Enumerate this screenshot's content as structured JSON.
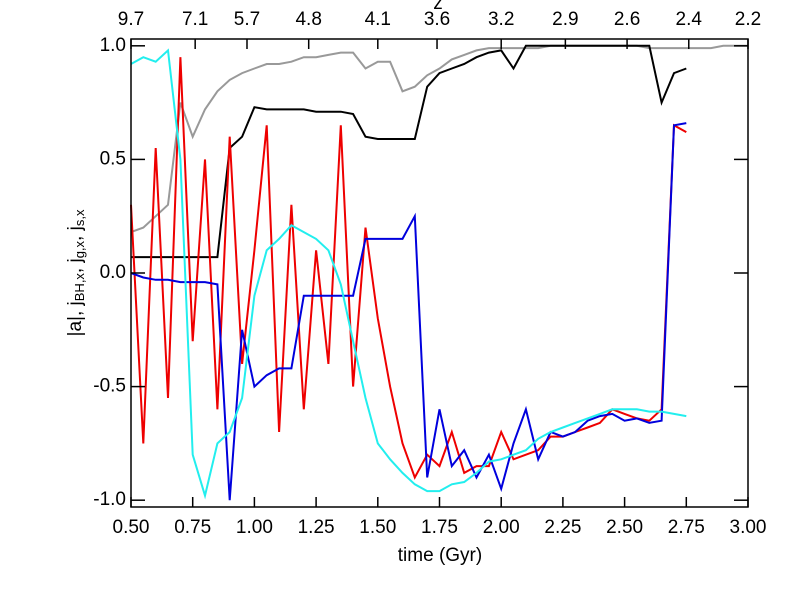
{
  "chart_data": {
    "type": "line",
    "xlabel": "time (Gyr)",
    "ylabel": [
      "|a|, j",
      "BH,x",
      ", j",
      "g,x",
      ", j",
      "s,x"
    ],
    "top_axis": {
      "label": "z",
      "ticks": [
        {
          "value": 0.5,
          "label": "9.7"
        },
        {
          "value": 0.76,
          "label": "7.1"
        },
        {
          "value": 0.97,
          "label": "5.7"
        },
        {
          "value": 1.22,
          "label": "4.8"
        },
        {
          "value": 1.5,
          "label": "4.1"
        },
        {
          "value": 1.74,
          "label": "3.6"
        },
        {
          "value": 2.0,
          "label": "3.2"
        },
        {
          "value": 2.26,
          "label": "2.9"
        },
        {
          "value": 2.51,
          "label": "2.6"
        },
        {
          "value": 2.76,
          "label": "2.4"
        },
        {
          "value": 3.0,
          "label": "2.2"
        }
      ]
    },
    "xlim": [
      0.5,
      3.0
    ],
    "ylim": [
      -1.03,
      1.03
    ],
    "xticks": [
      {
        "value": 0.5,
        "label": "0.50"
      },
      {
        "value": 0.75,
        "label": "0.75"
      },
      {
        "value": 1.0,
        "label": "1.00"
      },
      {
        "value": 1.25,
        "label": "1.25"
      },
      {
        "value": 1.5,
        "label": "1.50"
      },
      {
        "value": 1.75,
        "label": "1.75"
      },
      {
        "value": 2.0,
        "label": "2.00"
      },
      {
        "value": 2.25,
        "label": "2.25"
      },
      {
        "value": 2.5,
        "label": "2.50"
      },
      {
        "value": 2.75,
        "label": "2.75"
      },
      {
        "value": 3.0,
        "label": "3.00"
      }
    ],
    "yticks": [
      {
        "value": -1.0,
        "label": "-1.0"
      },
      {
        "value": -0.5,
        "label": "-0.5"
      },
      {
        "value": 0.0,
        "label": "0.0"
      },
      {
        "value": 0.5,
        "label": "0.5"
      },
      {
        "value": 1.0,
        "label": "1.0"
      }
    ],
    "x": [
      0.5,
      0.55,
      0.6,
      0.65,
      0.7,
      0.75,
      0.8,
      0.85,
      0.9,
      0.95,
      1.0,
      1.05,
      1.1,
      1.15,
      1.2,
      1.25,
      1.3,
      1.35,
      1.4,
      1.45,
      1.5,
      1.55,
      1.6,
      1.65,
      1.7,
      1.75,
      1.8,
      1.85,
      1.9,
      1.95,
      2.0,
      2.05,
      2.1,
      2.15,
      2.2,
      2.25,
      2.3,
      2.35,
      2.4,
      2.45,
      2.5,
      2.55,
      2.6,
      2.65,
      2.7,
      2.75,
      2.8,
      2.85,
      2.9,
      2.95,
      3.0
    ],
    "series": [
      {
        "color": "#999999",
        "values": [
          0.18,
          0.2,
          0.25,
          0.3,
          0.75,
          0.6,
          0.72,
          0.8,
          0.85,
          0.88,
          0.9,
          0.92,
          0.92,
          0.93,
          0.95,
          0.95,
          0.96,
          0.97,
          0.97,
          0.9,
          0.93,
          0.93,
          0.8,
          0.82,
          0.87,
          0.9,
          0.94,
          0.96,
          0.98,
          0.99,
          0.99,
          0.99,
          0.99,
          0.99,
          1.0,
          1.0,
          1.0,
          1.0,
          1.0,
          1.0,
          1.0,
          1.0,
          0.99,
          0.99,
          0.99,
          0.99,
          0.99,
          0.99,
          1.0,
          1.0,
          1.0
        ]
      },
      {
        "color": "#000000",
        "values": [
          0.07,
          0.07,
          0.07,
          0.07,
          0.07,
          0.07,
          0.07,
          0.07,
          0.55,
          0.6,
          0.73,
          0.72,
          0.72,
          0.72,
          0.72,
          0.71,
          0.71,
          0.71,
          0.7,
          0.6,
          0.59,
          0.59,
          0.59,
          0.59,
          0.82,
          0.88,
          0.9,
          0.92,
          0.95,
          0.97,
          0.98,
          0.9,
          1.0,
          1.0,
          1.0,
          1.0,
          1.0,
          1.0,
          1.0,
          1.0,
          1.0,
          1.0,
          1.0,
          0.75,
          0.88,
          0.9,
          null,
          null,
          null,
          null,
          null
        ]
      },
      {
        "color": "#ee0000",
        "values": [
          0.3,
          -0.75,
          0.55,
          -0.55,
          0.95,
          -0.3,
          0.5,
          -0.6,
          0.6,
          -0.4,
          0.1,
          0.65,
          -0.7,
          0.3,
          -0.6,
          0.1,
          -0.4,
          0.65,
          -0.5,
          0.2,
          -0.2,
          -0.5,
          -0.75,
          -0.9,
          -0.8,
          -0.85,
          -0.7,
          -0.88,
          -0.85,
          -0.85,
          -0.7,
          -0.82,
          -0.8,
          -0.78,
          -0.72,
          -0.72,
          -0.7,
          -0.68,
          -0.66,
          -0.6,
          -0.62,
          -0.64,
          -0.65,
          -0.6,
          0.65,
          0.62,
          null,
          null,
          null,
          null,
          null
        ]
      },
      {
        "color": "#0000dd",
        "values": [
          0.0,
          -0.02,
          -0.03,
          -0.03,
          -0.04,
          -0.04,
          -0.04,
          -0.05,
          -1.0,
          -0.25,
          -0.5,
          -0.45,
          -0.42,
          -0.42,
          -0.1,
          -0.1,
          -0.1,
          -0.1,
          -0.1,
          0.15,
          0.15,
          0.15,
          0.15,
          0.25,
          -0.9,
          -0.6,
          -0.85,
          -0.78,
          -0.9,
          -0.8,
          -0.95,
          -0.75,
          -0.6,
          -0.82,
          -0.7,
          -0.72,
          -0.7,
          -0.65,
          -0.63,
          -0.62,
          -0.65,
          -0.64,
          -0.66,
          -0.65,
          0.65,
          0.66,
          null,
          null,
          null,
          null,
          null
        ]
      },
      {
        "color": "#22eeee",
        "values": [
          0.92,
          0.95,
          0.93,
          0.98,
          0.5,
          -0.8,
          -0.98,
          -0.75,
          -0.7,
          -0.55,
          -0.1,
          0.1,
          0.15,
          0.21,
          0.18,
          0.15,
          0.1,
          -0.05,
          -0.3,
          -0.55,
          -0.75,
          -0.82,
          -0.88,
          -0.93,
          -0.96,
          -0.96,
          -0.93,
          -0.92,
          -0.88,
          -0.83,
          -0.82,
          -0.8,
          -0.78,
          -0.73,
          -0.7,
          -0.68,
          -0.66,
          -0.64,
          -0.62,
          -0.6,
          -0.6,
          -0.6,
          -0.61,
          -0.61,
          -0.62,
          -0.63,
          null,
          null,
          null,
          null,
          null
        ]
      }
    ]
  }
}
